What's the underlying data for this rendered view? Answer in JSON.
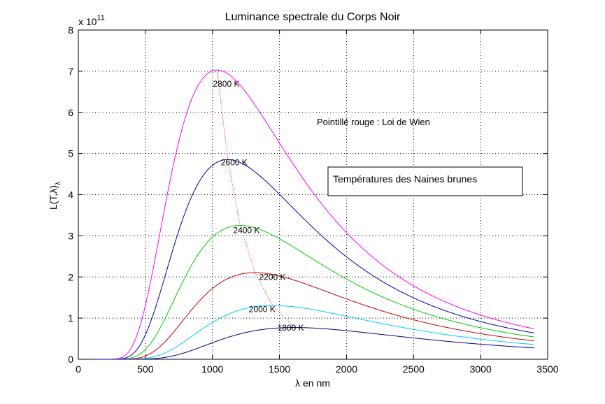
{
  "chart_data": {
    "type": "line",
    "title": "Luminance spectrale du Corps Noir",
    "xlabel": "λ en nm",
    "ylabel_main": "L(T,λ)",
    "ylabel_sub": "λ",
    "y_exponent_base": "x 10",
    "y_exponent_power": "11",
    "xlim": [
      0,
      3500
    ],
    "ylim": [
      0,
      8
    ],
    "x_ticks": [
      0,
      500,
      1000,
      1500,
      2000,
      2500,
      3000,
      3500
    ],
    "y_ticks": [
      0,
      1,
      2,
      3,
      4,
      5,
      6,
      7,
      8
    ],
    "x_tick_labels": [
      "0",
      "500",
      "1000",
      "1500",
      "2000",
      "2500",
      "3000",
      "3500"
    ],
    "y_tick_labels": [
      "0",
      "1",
      "2",
      "3",
      "4",
      "5",
      "6",
      "7",
      "8"
    ],
    "grid": true,
    "x_range_data": [
      100,
      3400
    ],
    "series": [
      {
        "name": "2800 K",
        "temperature": 2800,
        "color": "#ff00ff"
      },
      {
        "name": "2600 K",
        "temperature": 2600,
        "color": "#000099"
      },
      {
        "name": "2400 K",
        "temperature": 2400,
        "color": "#00cc00"
      },
      {
        "name": "2200 K",
        "temperature": 2200,
        "color": "#cc0000"
      },
      {
        "name": "2000 K",
        "temperature": 2000,
        "color": "#00ccff"
      },
      {
        "name": "1800 K",
        "temperature": 1800,
        "color": "#000088"
      }
    ],
    "peaks": [
      {
        "temperature": 2800,
        "x": 1035,
        "y": 7.03
      },
      {
        "temperature": 2600,
        "x": 1115,
        "y": 4.85
      },
      {
        "temperature": 2400,
        "x": 1207,
        "y": 3.25
      },
      {
        "temperature": 2200,
        "x": 1317,
        "y": 2.1
      },
      {
        "temperature": 2000,
        "x": 1449,
        "y": 1.3
      },
      {
        "temperature": 1800,
        "x": 1610,
        "y": 0.78
      }
    ],
    "wien_line_color": "#ff0000",
    "annotations": {
      "wien": "Pointillé rouge : Loi de Wien",
      "box": "Températures des Naines brunes"
    }
  }
}
